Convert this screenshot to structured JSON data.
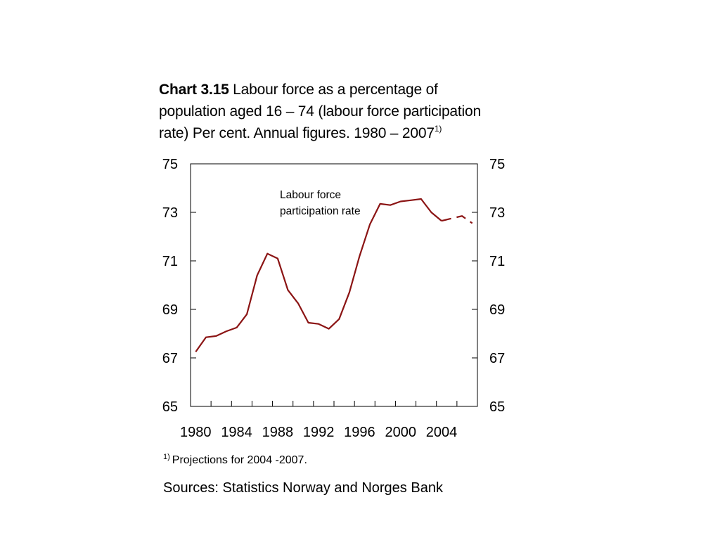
{
  "title": {
    "bold": "Chart 3.15",
    "text": " Labour force as a percentage of population aged 16 – 74 (labour force participation rate) Per cent. Annual figures. 1980 – 2007",
    "superscript": "1)"
  },
  "footnote": {
    "marker": "1)",
    "text": "Projections for 2004 -2007."
  },
  "sources": "Sources: Statistics Norway and Norges Bank",
  "chart_data": {
    "type": "line",
    "title": "Chart 3.15 Labour force as a percentage of population aged 16 – 74 (labour force participation rate) Per cent. Annual figures. 1980 – 2007",
    "xlabel": "",
    "ylabel": "",
    "xlim": [
      1979.5,
      2007.5
    ],
    "ylim": [
      65,
      75
    ],
    "x_ticks": [
      1980,
      1984,
      1988,
      1992,
      1996,
      2000,
      2004
    ],
    "y_ticks": [
      65,
      67,
      69,
      71,
      73,
      75
    ],
    "y_axis_sides": [
      "left",
      "right"
    ],
    "grid": false,
    "annotation": "Labour force participation rate",
    "color": "#8b1414",
    "series": [
      {
        "name": "Labour force participation rate",
        "style": "solid",
        "x": [
          1980,
          1981,
          1982,
          1983,
          1984,
          1985,
          1986,
          1987,
          1988,
          1989,
          1990,
          1991,
          1992,
          1993,
          1994,
          1995,
          1996,
          1997,
          1998,
          1999,
          2000,
          2001,
          2002,
          2003,
          2004
        ],
        "values": [
          67.25,
          67.85,
          67.9,
          68.1,
          68.25,
          68.8,
          70.4,
          71.3,
          71.1,
          69.8,
          69.25,
          68.45,
          68.4,
          68.2,
          68.6,
          69.7,
          71.2,
          72.5,
          73.35,
          73.3,
          73.45,
          73.5,
          73.55,
          73.0,
          72.65
        ]
      },
      {
        "name": "Projections",
        "style": "dashed",
        "x": [
          2004,
          2005,
          2006,
          2007
        ],
        "values": [
          72.65,
          72.75,
          72.85,
          72.55
        ]
      }
    ]
  }
}
